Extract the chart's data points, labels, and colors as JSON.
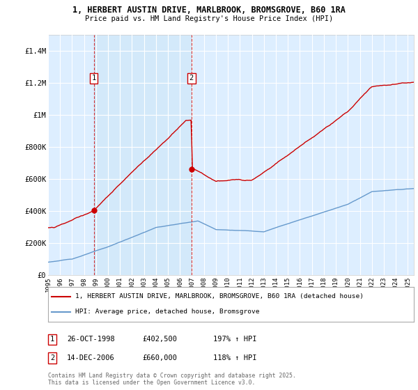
{
  "title_line1": "1, HERBERT AUSTIN DRIVE, MARLBROOK, BROMSGROVE, B60 1RA",
  "title_line2": "Price paid vs. HM Land Registry's House Price Index (HPI)",
  "ylim": [
    0,
    1500000
  ],
  "yticks": [
    0,
    200000,
    400000,
    600000,
    800000,
    1000000,
    1200000,
    1400000
  ],
  "ytick_labels": [
    "£0",
    "£200K",
    "£400K",
    "£600K",
    "£800K",
    "£1M",
    "£1.2M",
    "£1.4M"
  ],
  "background_color": "#ffffff",
  "plot_bg_color": "#ddeeff",
  "grid_color": "#ffffff",
  "shade_color": "#cce0f0",
  "purchase1_date": 1998.82,
  "purchase1_price": 402500,
  "purchase1_label": "1",
  "purchase2_date": 2006.96,
  "purchase2_price": 660000,
  "purchase2_label": "2",
  "line_color_property": "#cc0000",
  "line_color_hpi": "#6699cc",
  "legend_property": "1, HERBERT AUSTIN DRIVE, MARLBROOK, BROMSGROVE, B60 1RA (detached house)",
  "legend_hpi": "HPI: Average price, detached house, Bromsgrove",
  "footer": "Contains HM Land Registry data © Crown copyright and database right 2025.\nThis data is licensed under the Open Government Licence v3.0.",
  "xmin": 1995,
  "xmax": 2025.5
}
